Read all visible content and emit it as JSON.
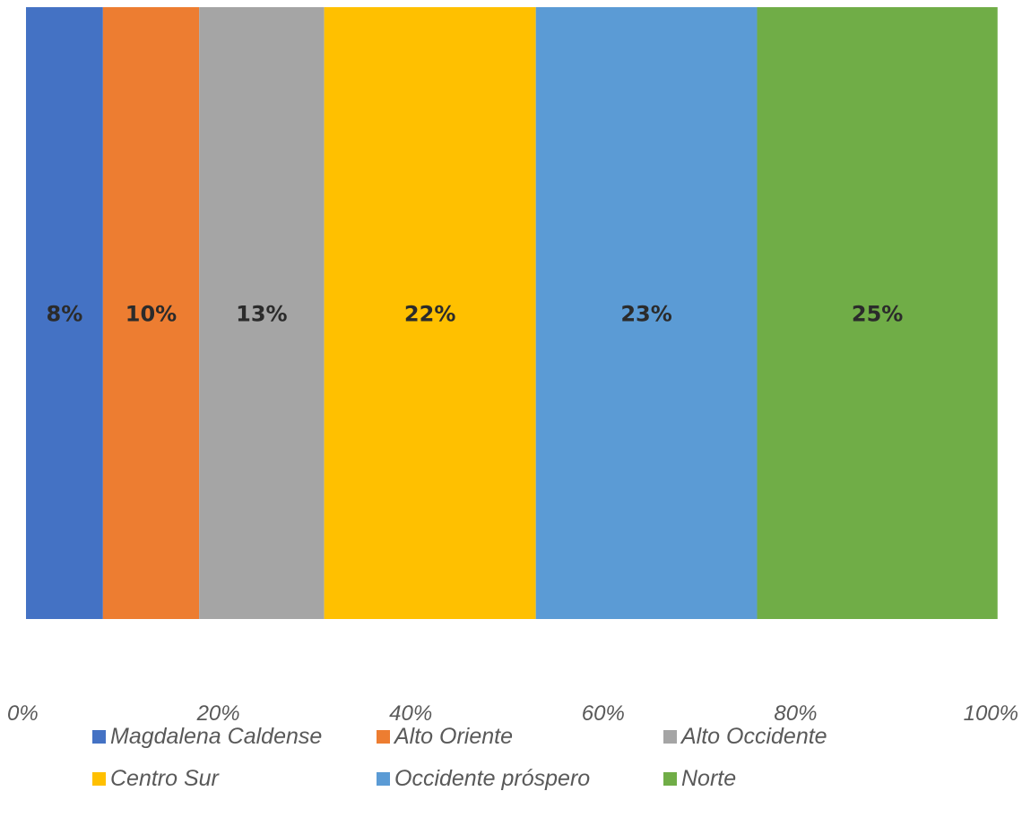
{
  "chart_data": {
    "type": "bar",
    "orientation": "horizontal-stacked-100",
    "categories": [
      ""
    ],
    "series": [
      {
        "name": "Magdalena Caldense",
        "values": [
          8
        ],
        "label": "8%",
        "color": "#4472C4"
      },
      {
        "name": "Alto Oriente",
        "values": [
          10
        ],
        "label": "10%",
        "color": "#ED7D31"
      },
      {
        "name": "Alto Occidente",
        "values": [
          13
        ],
        "label": "13%",
        "color": "#A5A5A5"
      },
      {
        "name": "Centro Sur",
        "values": [
          22
        ],
        "label": "22%",
        "color": "#FFC000"
      },
      {
        "name": "Occidente próspero",
        "values": [
          23
        ],
        "label": "23%",
        "color": "#5B9BD5"
      },
      {
        "name": "Norte",
        "values": [
          25
        ],
        "label": "25%",
        "color": "#70AD47"
      }
    ],
    "xlim": [
      0,
      100
    ],
    "x_ticks": [
      "0%",
      "20%",
      "40%",
      "60%",
      "80%",
      "100%"
    ],
    "grid": false,
    "legend_position": "bottom"
  }
}
